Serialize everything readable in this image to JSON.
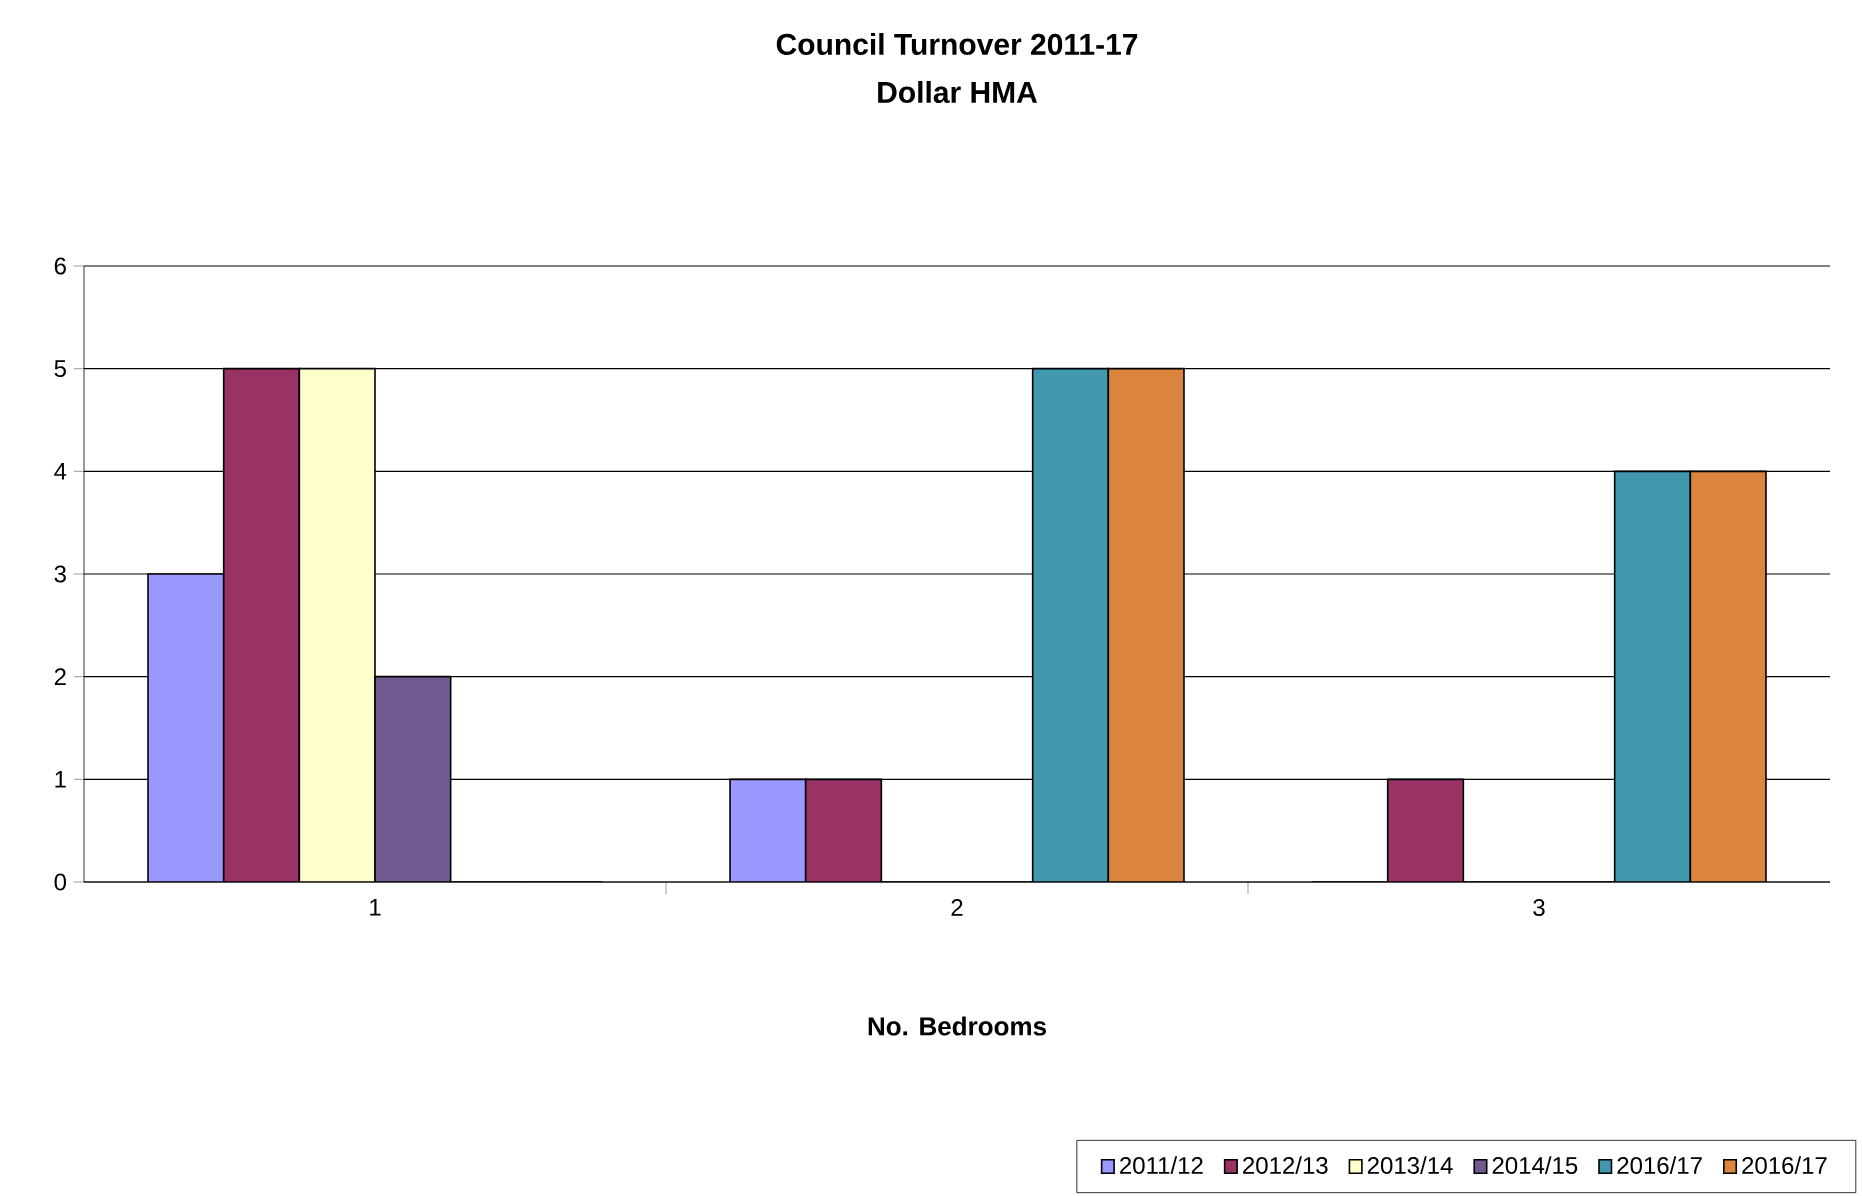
{
  "chart_data": {
    "type": "bar",
    "title": "Council Turnover 2011-17",
    "subtitle": "Dollar HMA",
    "xlabel": "No. Bedrooms",
    "categories": [
      "1",
      "2",
      "3"
    ],
    "series": [
      {
        "name": "2011/12",
        "color": "#9999ff",
        "values": [
          3,
          1,
          0
        ]
      },
      {
        "name": "2012/13",
        "color": "#993366",
        "values": [
          5,
          1,
          1
        ]
      },
      {
        "name": "2013/14",
        "color": "#ffffcc",
        "values": [
          5,
          0,
          0
        ]
      },
      {
        "name": "2014/15",
        "color": "#725990",
        "values": [
          2,
          0,
          0
        ]
      },
      {
        "name": "2016/17",
        "color": "#4198af",
        "values": [
          0,
          5,
          4
        ]
      },
      {
        "name": "2016/17",
        "color": "#db843d",
        "values": [
          0,
          5,
          4
        ]
      }
    ],
    "ylim": [
      0,
      6
    ],
    "yticks": [
      0,
      1,
      2,
      3,
      4,
      5,
      6
    ],
    "grid": "y",
    "legend": "bottom"
  }
}
